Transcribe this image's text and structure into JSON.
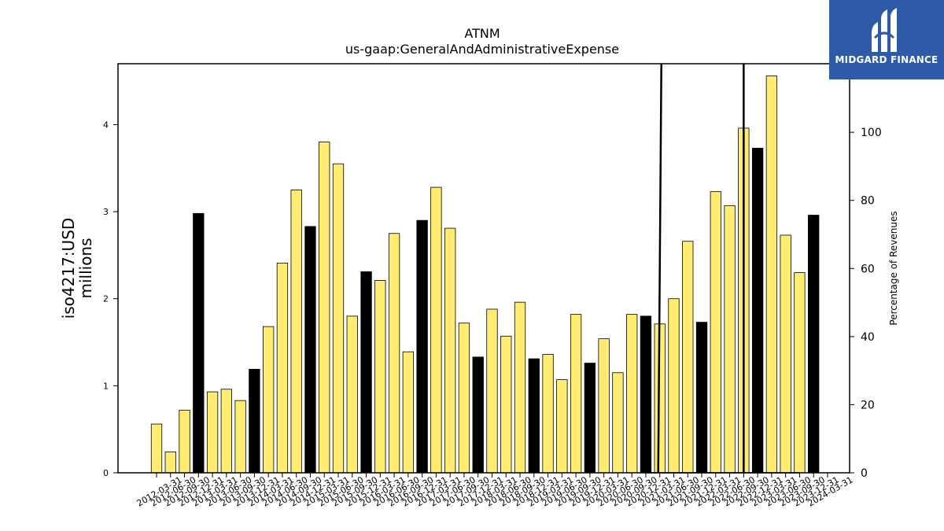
{
  "chart_data": {
    "type": "bar",
    "title": "ATNM",
    "subtitle": "us-gaap:GeneralAndAdministrativeExpense",
    "ylabel_left": [
      "iso4217:USD",
      "millions"
    ],
    "ylabel_right": "Percentage of Revenues",
    "ylim": [
      0,
      4.7
    ],
    "ylim_right": [
      0,
      120.13
    ],
    "yticks": [
      0,
      1,
      2,
      3,
      4
    ],
    "yticks_right": [
      0,
      20,
      40,
      60,
      80,
      100
    ],
    "grid": false,
    "categories": [
      "2012-03-31",
      "2012-06-30",
      "2012-09-30",
      "2012-12-31",
      "2013-03-31",
      "2013-06-30",
      "2013-09-30",
      "2013-12-31",
      "2014-03-31",
      "2014-06-30",
      "2014-09-30",
      "2014-12-31",
      "2015-03-31",
      "2015-06-30",
      "2015-09-30",
      "2015-12-31",
      "2016-03-31",
      "2016-06-30",
      "2016-09-30",
      "2016-12-31",
      "2017-03-31",
      "2017-06-30",
      "2017-09-30",
      "2017-12-31",
      "2018-03-31",
      "2018-06-30",
      "2018-09-30",
      "2018-12-31",
      "2019-03-31",
      "2019-06-30",
      "2019-09-30",
      "2019-12-31",
      "2020-03-31",
      "2020-06-30",
      "2020-09-30",
      "2020-12-31",
      "2021-03-31",
      "2021-06-30",
      "2021-09-30",
      "2021-12-31",
      "2022-03-31",
      "2022-06-30",
      "2022-09-30",
      "2022-12-31",
      "2023-03-31",
      "2023-06-30",
      "2023-09-30",
      "2023-12-31",
      "2024-03-31"
    ],
    "values": [
      0.56,
      0.24,
      0.72,
      2.98,
      0.93,
      0.96,
      0.83,
      1.19,
      1.68,
      2.41,
      3.25,
      2.83,
      3.8,
      3.55,
      1.8,
      2.31,
      2.21,
      2.75,
      1.39,
      2.9,
      3.28,
      2.81,
      1.72,
      1.33,
      1.88,
      1.57,
      1.96,
      1.31,
      1.36,
      1.07,
      1.82,
      1.26,
      1.54,
      1.15,
      1.82,
      1.8,
      1.71,
      2.0,
      2.66,
      1.73,
      3.23,
      3.07,
      3.96,
      3.73,
      4.56,
      2.73,
      2.3,
      2.96,
      null
    ],
    "colors": {
      "bar_fill": "#ffec70",
      "bar_fill_q4": "#000000",
      "bar_stroke": "#000000",
      "line": "#000000"
    },
    "percentage_line_note": "Near-vertical black line segments appear around 2021-03-31 and 2022-09-30 indicating percentage spikes beyond the right axis range"
  },
  "logo": {
    "text": "MIDGARD FINANCE",
    "background": "#2f5aa8"
  }
}
